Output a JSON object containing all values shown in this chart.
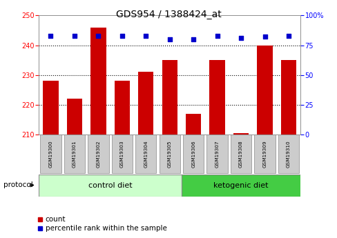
{
  "title": "GDS954 / 1388424_at",
  "samples": [
    "GSM19300",
    "GSM19301",
    "GSM19302",
    "GSM19303",
    "GSM19304",
    "GSM19305",
    "GSM19306",
    "GSM19307",
    "GSM19308",
    "GSM19309",
    "GSM19310"
  ],
  "count_values": [
    228,
    222,
    246,
    228,
    231,
    235,
    217,
    235,
    210.5,
    240,
    235
  ],
  "percentile_values": [
    83,
    83,
    83,
    83,
    83,
    80,
    80,
    83,
    81,
    82,
    83
  ],
  "left_ylim": [
    210,
    250
  ],
  "left_yticks": [
    210,
    220,
    230,
    240,
    250
  ],
  "right_ylim": [
    0,
    100
  ],
  "right_yticks": [
    0,
    25,
    50,
    75,
    100
  ],
  "bar_color": "#cc0000",
  "dot_color": "#0000cc",
  "n_control": 6,
  "control_label": "control diet",
  "ketogenic_label": "ketogenic diet",
  "protocol_label": "protocol",
  "legend_count": "count",
  "legend_percentile": "percentile rank within the sample",
  "title_fontsize": 10,
  "tick_fontsize": 7,
  "control_bg": "#ccffcc",
  "ketogenic_bg": "#44cc44",
  "tick_label_bg": "#cccccc",
  "right_tick_labels": [
    "0",
    "25",
    "50",
    "75",
    "100%"
  ]
}
